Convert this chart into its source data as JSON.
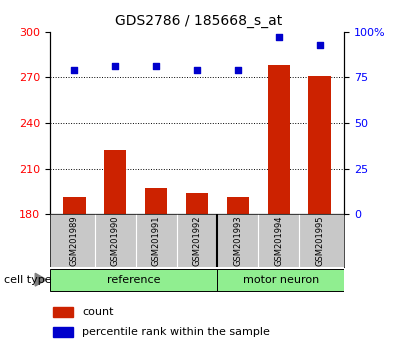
{
  "title": "GDS2786 / 185668_s_at",
  "samples": [
    "GSM201989",
    "GSM201990",
    "GSM201991",
    "GSM201992",
    "GSM201993",
    "GSM201994",
    "GSM201995"
  ],
  "counts": [
    191,
    222,
    197,
    194,
    191,
    278,
    271
  ],
  "percentiles": [
    79,
    81,
    81,
    79,
    79,
    97,
    93
  ],
  "group_divider": 3.5,
  "left_ylim": [
    180,
    300
  ],
  "right_ylim": [
    0,
    100
  ],
  "left_yticks": [
    180,
    210,
    240,
    270,
    300
  ],
  "right_yticks": [
    0,
    25,
    50,
    75,
    100
  ],
  "right_yticklabels": [
    "0",
    "25",
    "50",
    "75",
    "100%"
  ],
  "bar_color": "#cc2200",
  "marker_color": "#0000cc",
  "bar_width": 0.55,
  "ref_group_color": "#90ee90",
  "neuron_group_color": "#90ee90",
  "sample_box_color": "#c8c8c8",
  "cell_type_label": "cell type",
  "group_label_ref": "reference",
  "group_label_neuron": "motor neuron",
  "legend_count": "count",
  "legend_percentile": "percentile rank within the sample",
  "title_fontsize": 10,
  "tick_fontsize": 8,
  "label_fontsize": 8,
  "legend_fontsize": 8,
  "sample_fontsize": 6
}
